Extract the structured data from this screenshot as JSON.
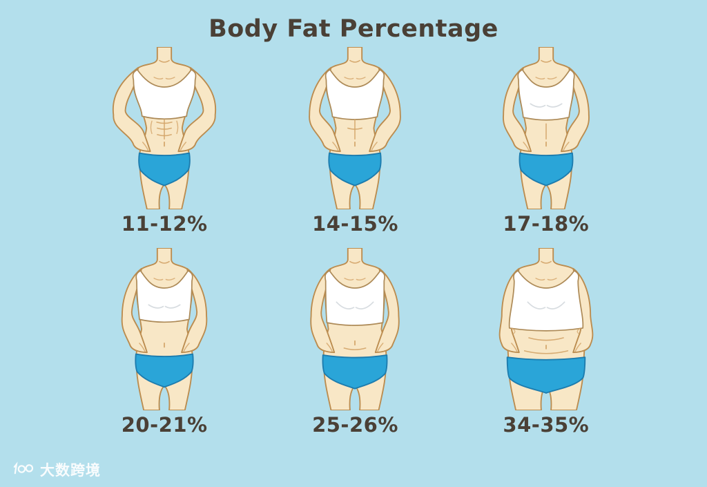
{
  "title": "Body Fat Percentage",
  "figures": [
    {
      "label": "11-12%",
      "build": "athletic-defined-abs"
    },
    {
      "label": "14-15%",
      "build": "lean-toned"
    },
    {
      "label": "17-18%",
      "build": "fit-slim"
    },
    {
      "label": "20-21%",
      "build": "average"
    },
    {
      "label": "25-26%",
      "build": "soft"
    },
    {
      "label": "34-35%",
      "build": "heavy"
    }
  ],
  "watermark": {
    "logo": "scribble-100-logo",
    "text": "大数跨境"
  },
  "colors": {
    "background": "#b3dfec",
    "skin": "#f8e7c6",
    "outline": "#bb8c4f",
    "detail": "#d3a468",
    "top": "#ffffff",
    "top_outline": "#ad8a57",
    "top_shading": "#d7dce0",
    "briefs": "#2aa5d8",
    "briefs_outline": "#1d7cae",
    "title_text": "#4a4036",
    "watermark_text": "#ffffff"
  }
}
